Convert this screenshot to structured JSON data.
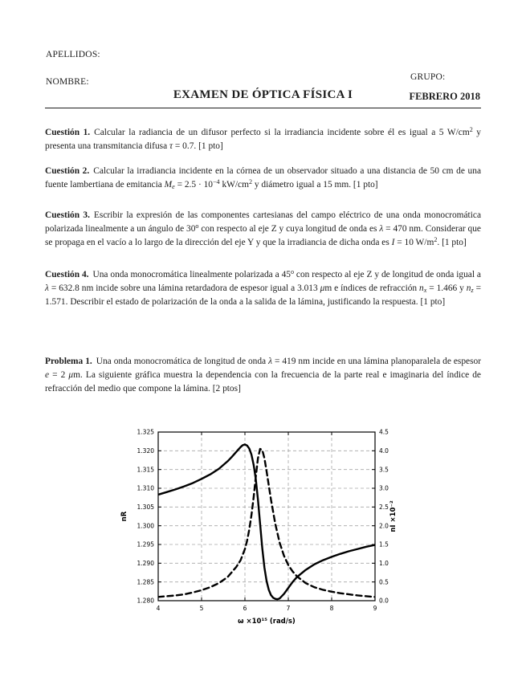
{
  "header": {
    "apellidos_label": "APELLIDOS:",
    "nombre_label": "NOMBRE:",
    "grupo_label": "GRUPO:",
    "title": "EXAMEN DE ÓPTICA FÍSICA I",
    "date": "FEBRERO 2018"
  },
  "questions": [
    {
      "label": "Cuestión 1.",
      "text_html": "Calcular la radiancia de un difusor perfecto si la irradiancia incidente sobre él es igual a 5 W/cm<sup>2</sup> y presenta una transmitancia difusa <i>τ</i> = 0.7. [1 pto]"
    },
    {
      "label": "Cuestión 2.",
      "text_html": "Calcular la irradiancia incidente en la córnea de un observador situado a una distancia de 50 cm de una fuente lambertiana de emitancia <i>M<sub>e</sub></i> = 2.5 · 10<sup>−4</sup> kW/cm<sup>2</sup> y diámetro igual a 15 mm. [1 pto]"
    },
    {
      "label": "Cuestión 3.",
      "text_html": "Escribir la expresión de las componentes cartesianas del campo eléctrico de una onda monocromática polarizada linealmente a un ángulo de 30<sup>o</sup> con respecto al eje Z y cuya longitud de onda es <i>λ</i> = 470 nm. Considerar que se propaga en el vacío a lo largo de la dirección del eje Y y que la irradiancia de dicha onda es <i>I</i> = 10 W/m<sup>2</sup>. [1 pto]"
    },
    {
      "label": "Cuestión 4.",
      "text_html": "Una onda monocromática linealmente polarizada a 45<sup>o</sup> con respecto al eje Z y de longitud de onda igual a <i>λ</i> = 632.8 nm incide sobre una lámina retardadora de espesor igual a 3.013 <i>μ</i>m e índices de refracción <i>n<sub>x</sub></i> = 1.466 y <i>n<sub>z</sub></i> = 1.571. Describir el estado de polarización de la onda a la salida de la lámina, justificando la respuesta. [1 pto]"
    }
  ],
  "problem": {
    "label": "Problema 1.",
    "text_html": "Una onda monocromática de longitud de onda <i>λ</i> = 419 nm incide en una lámina planoparalela de espesor <i>e</i> = 2 <i>μ</i>m. La siguiente gráfica muestra la dependencia con la frecuencia de la parte real e imaginaria del índice de refracción del medio que compone la lámina. [2 ptos]"
  },
  "chart_data": {
    "type": "line",
    "title": "",
    "xlabel": "ω ×10¹⁵ (rad/s)",
    "ylabel_left": "nR",
    "ylabel_right": "nI ×10⁻²",
    "xlim": [
      4,
      9
    ],
    "ylim_left": [
      1.28,
      1.325
    ],
    "ylim_right": [
      0.0,
      4.5
    ],
    "xticks": [
      4,
      5,
      6,
      7,
      8,
      9
    ],
    "yticks_left": [
      1.28,
      1.285,
      1.29,
      1.295,
      1.3,
      1.305,
      1.31,
      1.315,
      1.32,
      1.325
    ],
    "yticks_right": [
      0.0,
      0.5,
      1.0,
      1.5,
      2.0,
      2.5,
      3.0,
      3.5,
      4.0,
      4.5
    ],
    "grid": true,
    "legend_position": "none",
    "line_color": "#000000",
    "grid_color": "#a6a6a6",
    "series": [
      {
        "name": "nR (parte real del índice de refracción)",
        "axis": "left",
        "line_style": "solid",
        "x": [
          4.0,
          4.2,
          4.4,
          4.6,
          4.8,
          5.0,
          5.2,
          5.4,
          5.6,
          5.7,
          5.8,
          5.9,
          5.95,
          6.0,
          6.05,
          6.1,
          6.15,
          6.2,
          6.25,
          6.3,
          6.35,
          6.4,
          6.45,
          6.5,
          6.55,
          6.6,
          6.65,
          6.7,
          6.75,
          6.8,
          6.9,
          7.0,
          7.1,
          7.2,
          7.4,
          7.6,
          7.8,
          8.0,
          8.2,
          8.4,
          8.6,
          8.8,
          9.0
        ],
        "y": [
          1.3083,
          1.309,
          1.3097,
          1.3105,
          1.3114,
          1.3125,
          1.3137,
          1.3152,
          1.3172,
          1.3184,
          1.3197,
          1.321,
          1.3215,
          1.3217,
          1.3214,
          1.3206,
          1.319,
          1.3163,
          1.3125,
          1.307,
          1.3005,
          1.294,
          1.2888,
          1.2852,
          1.2829,
          1.2815,
          1.2808,
          1.2805,
          1.2804,
          1.2806,
          1.2818,
          1.2834,
          1.285,
          1.2863,
          1.2882,
          1.2897,
          1.2908,
          1.2917,
          1.2925,
          1.2932,
          1.2938,
          1.2944,
          1.2949
        ]
      },
      {
        "name": "nI ×10⁻² (parte imaginaria del índice de refracción)",
        "axis": "right",
        "line_style": "dashed",
        "x": [
          4.0,
          4.2,
          4.4,
          4.6,
          4.8,
          5.0,
          5.2,
          5.4,
          5.6,
          5.8,
          5.9,
          6.0,
          6.05,
          6.1,
          6.15,
          6.2,
          6.25,
          6.3,
          6.35,
          6.4,
          6.45,
          6.5,
          6.6,
          6.7,
          6.8,
          6.9,
          7.0,
          7.1,
          7.2,
          7.4,
          7.6,
          7.8,
          8.0,
          8.2,
          8.4,
          8.6,
          8.8,
          9.0
        ],
        "y": [
          0.1,
          0.12,
          0.14,
          0.17,
          0.22,
          0.28,
          0.36,
          0.47,
          0.63,
          0.9,
          1.08,
          1.38,
          1.6,
          1.9,
          2.28,
          2.75,
          3.3,
          3.8,
          4.05,
          4.02,
          3.8,
          3.45,
          2.7,
          2.05,
          1.55,
          1.2,
          0.95,
          0.78,
          0.65,
          0.47,
          0.36,
          0.29,
          0.24,
          0.2,
          0.17,
          0.14,
          0.12,
          0.1
        ]
      }
    ]
  }
}
